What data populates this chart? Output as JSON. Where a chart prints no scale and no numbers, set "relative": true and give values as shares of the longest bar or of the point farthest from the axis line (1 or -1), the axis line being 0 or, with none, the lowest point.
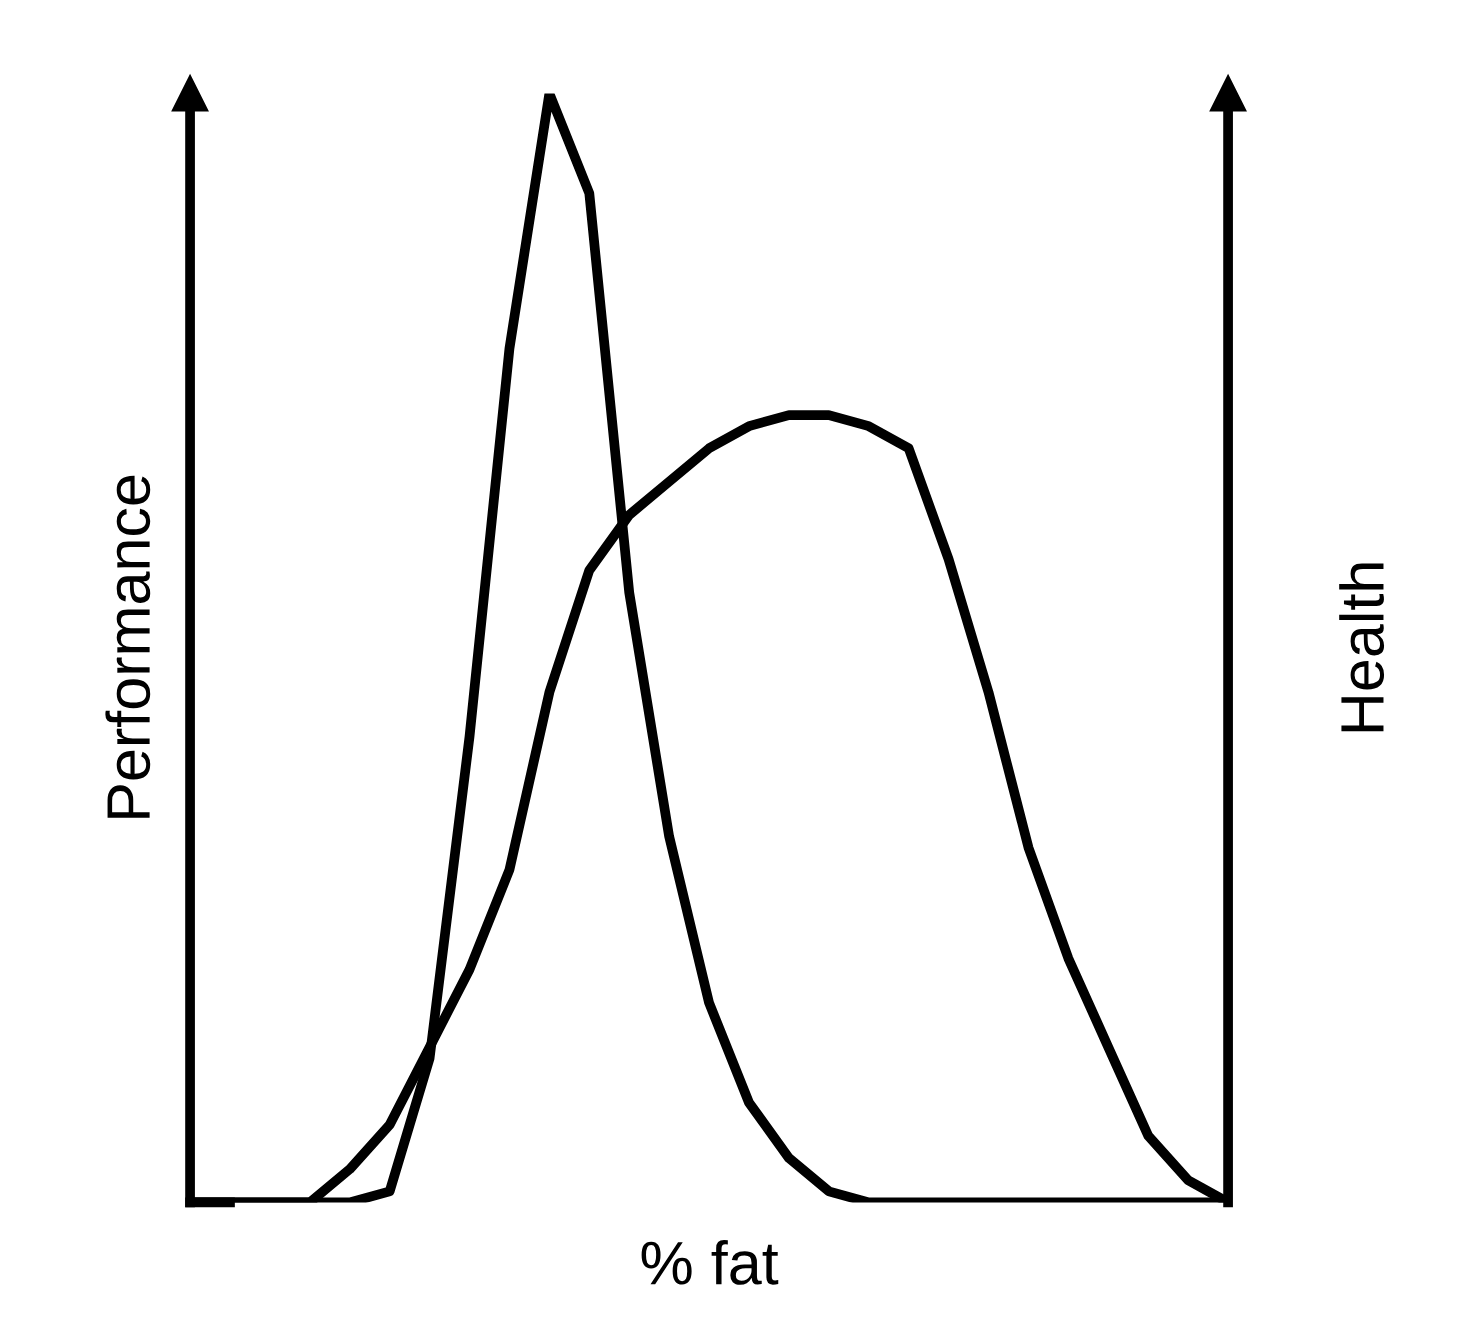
{
  "chart_data": {
    "type": "line",
    "relative": true,
    "xlabel": "% fat",
    "ylabel": "Performance",
    "y2label": "Health",
    "grid": false,
    "marker": "none",
    "line_style": "solid",
    "categories": [
      null,
      null,
      null,
      null,
      null,
      null,
      null,
      null,
      null,
      null,
      null,
      null,
      null,
      null,
      null,
      null,
      null,
      null,
      null,
      null,
      null,
      null,
      null,
      null,
      null,
      null,
      null
    ],
    "series": [
      {
        "color": "#000000",
        "values": [
          0,
          0,
          0,
          0,
          0,
          0.01,
          0.13,
          0.42,
          0.77,
          1,
          0.91,
          0.55,
          0.33,
          0.18,
          0.09,
          0.04,
          0.01,
          0,
          0,
          0,
          0,
          0,
          0,
          0,
          0,
          0,
          0
        ]
      },
      {
        "color": "#000000",
        "values": [
          0,
          0,
          0,
          0,
          0.03,
          0.07,
          0.14,
          0.21,
          0.3,
          0.46,
          0.57,
          0.62,
          0.65,
          0.68,
          0.7,
          0.71,
          0.71,
          0.7,
          0.68,
          0.58,
          0.46,
          0.32,
          0.22,
          0.14,
          0.06,
          0.02,
          0
        ]
      }
    ]
  }
}
